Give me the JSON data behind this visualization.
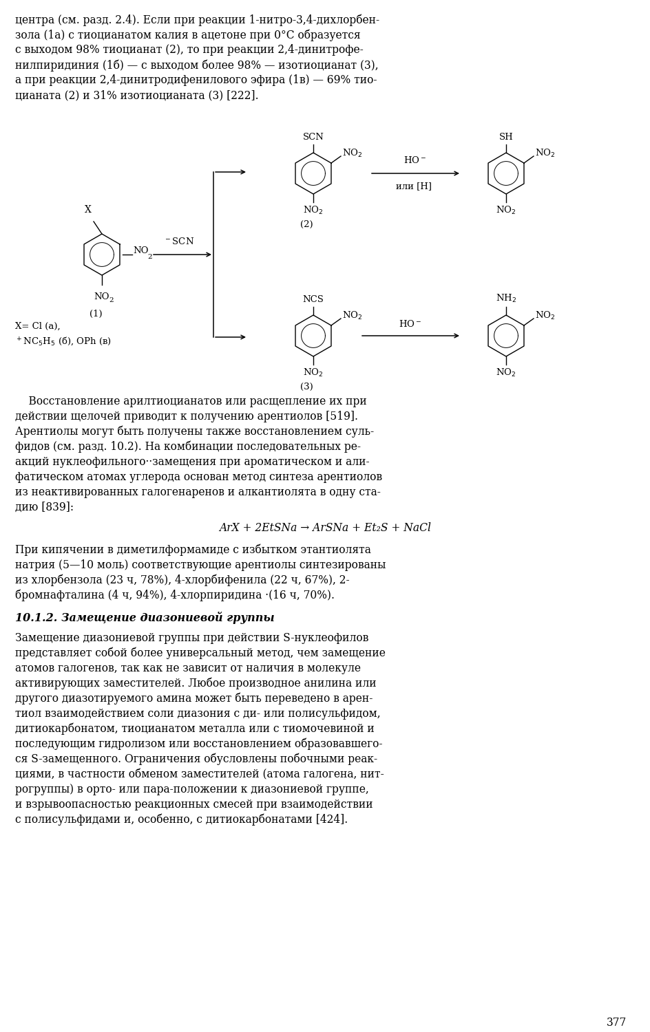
{
  "figsize": [
    9.44,
    15.0
  ],
  "dpi": 100,
  "bg": "#ffffff",
  "para1_lines": [
    "центра (см. разд. 2.4). Если при реакции 1-нитро-3,4-дихлорбен-",
    "зола (1а) с тиоцианатом калия в ацетоне при 0°C образуется",
    "с выходом 98% тиоцианат (2), то при реакции 2,4-динитрофе-",
    "нилпиридиния (1б) — с выходом более 98% — изотиоцианат (3),",
    "а при реакции 2,4-динитродифенилового эфира (1в) — 69% тио-",
    "цианата (2) и 31% изотиоцианата (3) [222]."
  ],
  "para2_lines": [
    "    Восстановление арилтиоцианатов или расщепление их при",
    "действии щелочей приводит к получению арентиолов [519].",
    "Арентиолы могут быть получены также восстановлением суль-",
    "фидов (см. разд. 10.2). На комбинации последовательных ре-",
    "акций нуклеофильного··замещения при ароматическом и али-",
    "фатическом атомах углерода основан метод синтеза арентиолов",
    "из неактивированных галогенаренов и алкантиолята в одну ста-",
    "дию [839]:"
  ],
  "equation": "ArX + 2EtSNa → ArSNa + Et₂S + NaCl",
  "para3_lines": [
    "При кипячении в диметилформамиде с избытком этантиолята",
    "натрия (5—10 моль) соответствующие арентиолы синтезированы",
    "из хлорбензола (23 ч, 78%), 4-хлорбифенила (22 ч, 67%), 2-",
    "бромнафталина (4 ч, 94%), 4-хлорпиридина ·(16 ч, 70%)."
  ],
  "section_header": "10.1.2. Замещение диазониевой группы",
  "para4_lines": [
    "Замещение диазониевой группы при действии S-нуклеофилов",
    "представляет собой более универсальный метод, чем замещение",
    "атомов галогенов, так как не зависит от наличия в молекуле",
    "активирующих заместителей. Любое производное анилина или",
    "другого диазотируемого амина может быть переведено в арен-",
    "тиол взаимодействием соли диазония с ди- или полисульфидом,",
    "дитиокарбонатом, тиоцианатом металла или с тиомочевиной и",
    "последующим гидролизом или восстановлением образовавшего-",
    "ся S-замещенного. Ограничения обусловлены побочными реак-",
    "циями, в частности обменом заместителей (атома галогена, нит-",
    "рогруппы) в орто- или пара-положении к диазониевой группе,",
    "и взрывоопасностью реакционных смесей при взаимодействии",
    "с полисульфидами и, особенно, с дитиокарбонатами [424]."
  ],
  "page_number": "377"
}
